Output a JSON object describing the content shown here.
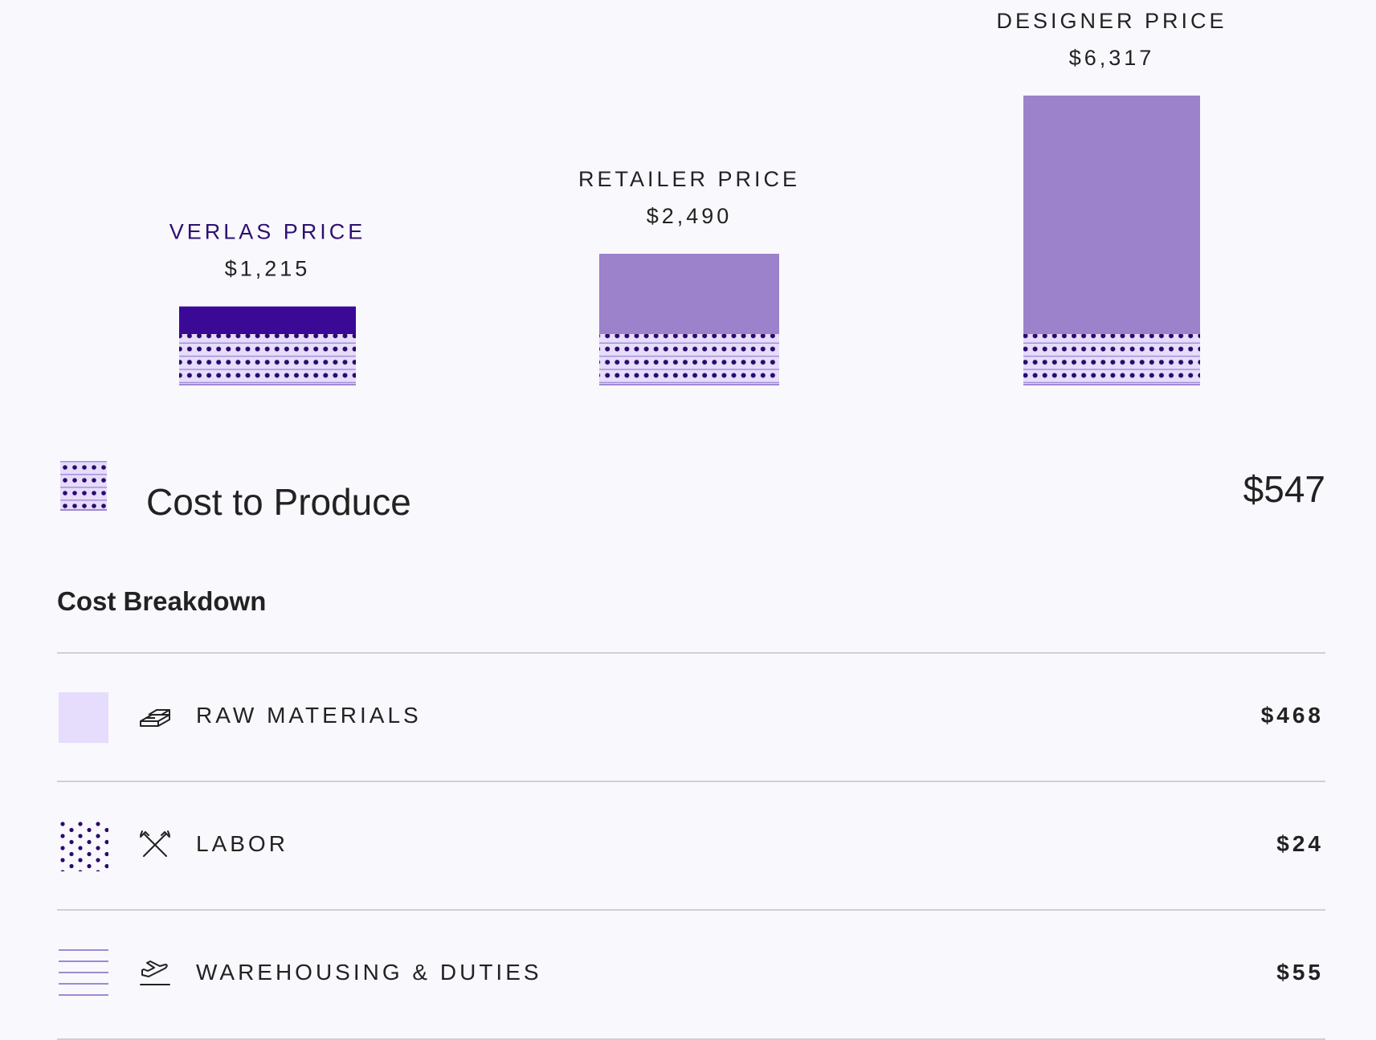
{
  "chart_data": {
    "type": "bar",
    "title": "",
    "xlabel": "",
    "ylabel": "",
    "categories": [
      "VERLAS PRICE",
      "RETAILER PRICE",
      "DESIGNER PRICE"
    ],
    "values": [
      1215,
      2490,
      6317
    ],
    "value_labels": [
      "$1,215",
      "$2,490",
      "$6,317"
    ],
    "cost_to_produce": 547,
    "label_colors": [
      "#2d1070",
      "#222222",
      "#222222"
    ],
    "bar_colors": [
      "#3a0a96",
      "#9b82ca",
      "#9b82ca"
    ]
  },
  "cost_to_produce": {
    "label": "Cost to Produce",
    "value": "$547"
  },
  "breakdown": {
    "title": "Cost Breakdown",
    "items": [
      {
        "label": "RAW MATERIALS",
        "value": "$468",
        "icon": "gold-bars-icon",
        "swatch": "solid"
      },
      {
        "label": "LABOR",
        "value": "$24",
        "icon": "crossed-hammers-icon",
        "swatch": "dots"
      },
      {
        "label": "WAREHOUSING & DUTIES",
        "value": "$55",
        "icon": "plane-takeoff-icon",
        "swatch": "lines"
      }
    ]
  },
  "colors": {
    "background": "#f9f8fd",
    "verlas": "#3a0a96",
    "competitor": "#9b82ca",
    "pattern_fill": "#e6dcfb",
    "pattern_line": "#9f8ad4",
    "pattern_dot": "#2a0a6b"
  }
}
